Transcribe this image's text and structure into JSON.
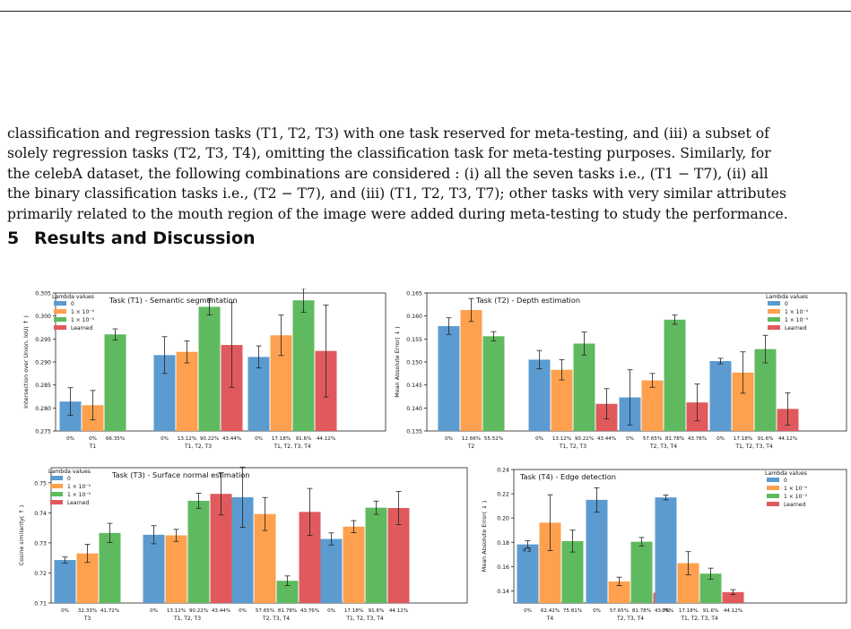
{
  "paragraph": [
    "classification and regression tasks (T1, T2, T3) with one task reserved for meta-testing, and (iii) a subset of",
    "solely regression tasks (T2, T3, T4), omitting the classification task for meta-testing purposes. Similarly, for",
    "the celebA dataset, the following combinations are considered : (i) all the seven tasks i.e., (T1 − T7), (ii) all",
    "the binary classification tasks i.e., (T2 − T7), and (iii) (T1, T2, T3, T7); other tasks with very similar attributes",
    "primarily related to the mouth region of the image were added during meta-testing to study the performance."
  ],
  "section": {
    "number": "5",
    "title": "Results and Discussion"
  },
  "colors": {
    "s0": "#5b9bd0",
    "s1": "#fea04e",
    "s2": "#5fba5f",
    "s3": "#e05a5d"
  },
  "legend_title": "Lambda values",
  "series_names": [
    "0",
    "1 × 10⁻⁴",
    "1 × 10⁻³",
    "Learned"
  ],
  "chart_data": [
    {
      "type": "bar",
      "title": "Task (T1) - Semantic segmentation",
      "ylabel": "Intersection over Union, IoU( ↑ )",
      "ylim": [
        0.275,
        0.305
      ],
      "yticks": [
        0.275,
        0.28,
        0.285,
        0.29,
        0.295,
        0.3,
        0.305
      ],
      "legend_position": "top-left",
      "groups": [
        {
          "label": "T1",
          "bars": [
            {
              "s": 0,
              "v": 0.2814,
              "e": 0.003,
              "p": "0%"
            },
            {
              "s": 1,
              "v": 0.2806,
              "e": 0.0032,
              "p": "0%"
            },
            {
              "s": 2,
              "v": 0.296,
              "e": 0.0012,
              "p": "66.35%"
            }
          ]
        },
        {
          "label": "T1, T2, T3",
          "bars": [
            {
              "s": 0,
              "v": 0.2915,
              "e": 0.004,
              "p": "0%"
            },
            {
              "s": 1,
              "v": 0.2922,
              "e": 0.0024,
              "p": "13.12%"
            },
            {
              "s": 2,
              "v": 0.302,
              "e": 0.0018,
              "p": "90.22%"
            },
            {
              "s": 3,
              "v": 0.2937,
              "e": 0.0092,
              "p": "43.44%"
            }
          ]
        },
        {
          "label": "T1, T2, T3, T4",
          "bars": [
            {
              "s": 0,
              "v": 0.2911,
              "e": 0.0024,
              "p": "0%"
            },
            {
              "s": 1,
              "v": 0.2958,
              "e": 0.0044,
              "p": "17.18%"
            },
            {
              "s": 2,
              "v": 0.3034,
              "e": 0.0026,
              "p": "91.6%"
            },
            {
              "s": 3,
              "v": 0.2924,
              "e": 0.01,
              "p": "44.12%"
            }
          ]
        }
      ]
    },
    {
      "type": "bar",
      "title": "Task (T2) - Depth estimation",
      "ylabel": "Mean Absolute Error( ↓ )",
      "ylim": [
        0.135,
        0.165
      ],
      "yticks": [
        0.135,
        0.14,
        0.145,
        0.15,
        0.155,
        0.16,
        0.165
      ],
      "legend_position": "top-right",
      "groups": [
        {
          "label": "T2",
          "bars": [
            {
              "s": 0,
              "v": 0.1578,
              "e": 0.0018,
              "p": "0%"
            },
            {
              "s": 1,
              "v": 0.1613,
              "e": 0.0025,
              "p": "12.66%"
            },
            {
              "s": 2,
              "v": 0.1556,
              "e": 0.001,
              "p": "55.52%"
            }
          ]
        },
        {
          "label": "T1, T2, T3",
          "bars": [
            {
              "s": 0,
              "v": 0.1505,
              "e": 0.002,
              "p": "0%"
            },
            {
              "s": 1,
              "v": 0.1483,
              "e": 0.0022,
              "p": "13.12%"
            },
            {
              "s": 2,
              "v": 0.154,
              "e": 0.0025,
              "p": "90.22%"
            },
            {
              "s": 3,
              "v": 0.1409,
              "e": 0.0033,
              "p": "43.44%"
            }
          ]
        },
        {
          "label": "T2, T3, T4",
          "bars": [
            {
              "s": 0,
              "v": 0.1423,
              "e": 0.006,
              "p": "0%"
            },
            {
              "s": 1,
              "v": 0.146,
              "e": 0.0015,
              "p": "57.65%"
            },
            {
              "s": 2,
              "v": 0.1592,
              "e": 0.001,
              "p": "81.78%"
            },
            {
              "s": 3,
              "v": 0.1412,
              "e": 0.004,
              "p": "43.76%"
            }
          ]
        },
        {
          "label": "T1, T2, T3, T4",
          "bars": [
            {
              "s": 0,
              "v": 0.1502,
              "e": 0.0006,
              "p": "0%"
            },
            {
              "s": 1,
              "v": 0.1477,
              "e": 0.0045,
              "p": "17.18%"
            },
            {
              "s": 2,
              "v": 0.1528,
              "e": 0.003,
              "p": "91.6%"
            },
            {
              "s": 3,
              "v": 0.1398,
              "e": 0.0035,
              "p": "44.12%"
            }
          ]
        }
      ]
    },
    {
      "type": "bar",
      "title": "Task (T3) - Surface normal estimation",
      "ylabel": "Cosine similarity( ↑ )",
      "ylim": [
        0.71,
        0.755
      ],
      "yticks": [
        0.71,
        0.72,
        0.73,
        0.74,
        0.75
      ],
      "legend_position": "top-left",
      "groups": [
        {
          "label": "T3",
          "bars": [
            {
              "s": 0,
              "v": 0.7243,
              "e": 0.001,
              "p": "0%"
            },
            {
              "s": 1,
              "v": 0.7265,
              "e": 0.003,
              "p": "32.33%"
            },
            {
              "s": 2,
              "v": 0.7333,
              "e": 0.0032,
              "p": "41.72%"
            }
          ]
        },
        {
          "label": "T1, T2, T3",
          "bars": [
            {
              "s": 0,
              "v": 0.7327,
              "e": 0.003,
              "p": "0%"
            },
            {
              "s": 1,
              "v": 0.7325,
              "e": 0.002,
              "p": "13.12%"
            },
            {
              "s": 2,
              "v": 0.744,
              "e": 0.0025,
              "p": "90.22%"
            },
            {
              "s": 3,
              "v": 0.7463,
              "e": 0.007,
              "p": "43.44%"
            }
          ]
        },
        {
          "label": "T2, T3, T4",
          "bars": [
            {
              "s": 0,
              "v": 0.7452,
              "e": 0.01,
              "p": "0%"
            },
            {
              "s": 1,
              "v": 0.7396,
              "e": 0.0055,
              "p": "57.65%"
            },
            {
              "s": 2,
              "v": 0.7174,
              "e": 0.0016,
              "p": "81.78%"
            },
            {
              "s": 3,
              "v": 0.7403,
              "e": 0.0078,
              "p": "43.76%"
            }
          ]
        },
        {
          "label": "T1, T2, T3, T4",
          "bars": [
            {
              "s": 0,
              "v": 0.7313,
              "e": 0.002,
              "p": "0%"
            },
            {
              "s": 1,
              "v": 0.7354,
              "e": 0.002,
              "p": "17.18%"
            },
            {
              "s": 2,
              "v": 0.7417,
              "e": 0.0022,
              "p": "91.6%"
            },
            {
              "s": 3,
              "v": 0.7416,
              "e": 0.0055,
              "p": "44.12%"
            }
          ]
        }
      ]
    },
    {
      "type": "bar",
      "title": "Task (T4) - Edge detection",
      "ylabel": "Mean Absolute Error( ↓ )",
      "ylim": [
        0.13,
        0.24
      ],
      "yticks": [
        0.14,
        0.16,
        0.18,
        0.2,
        0.22,
        0.24
      ],
      "legend_position": "top-right",
      "annotation": "×3",
      "groups": [
        {
          "label": "T4",
          "bars": [
            {
              "s": 0,
              "v": 0.1783,
              "e": 0.003,
              "p": "0%"
            },
            {
              "s": 1,
              "v": 0.1962,
              "e": 0.023,
              "p": "62.42%"
            },
            {
              "s": 2,
              "v": 0.181,
              "e": 0.009,
              "p": "75.81%"
            }
          ]
        },
        {
          "label": "T2, T3, T4",
          "bars": [
            {
              "s": 0,
              "v": 0.215,
              "e": 0.01,
              "p": "0%"
            },
            {
              "s": 1,
              "v": 0.1478,
              "e": 0.0035,
              "p": "57.65%"
            },
            {
              "s": 2,
              "v": 0.1805,
              "e": 0.0035,
              "p": "81.78%"
            },
            {
              "s": 3,
              "v": 0.1385,
              "e": 0.0025,
              "p": "43.76%"
            }
          ]
        },
        {
          "label": "T1, T2, T3, T4",
          "bars": [
            {
              "s": 0,
              "v": 0.217,
              "e": 0.002,
              "p": "0%"
            },
            {
              "s": 1,
              "v": 0.1628,
              "e": 0.0095,
              "p": "17.18%"
            },
            {
              "s": 2,
              "v": 0.1542,
              "e": 0.0045,
              "p": "91.6%"
            },
            {
              "s": 3,
              "v": 0.139,
              "e": 0.002,
              "p": "44.12%"
            }
          ]
        }
      ]
    }
  ]
}
